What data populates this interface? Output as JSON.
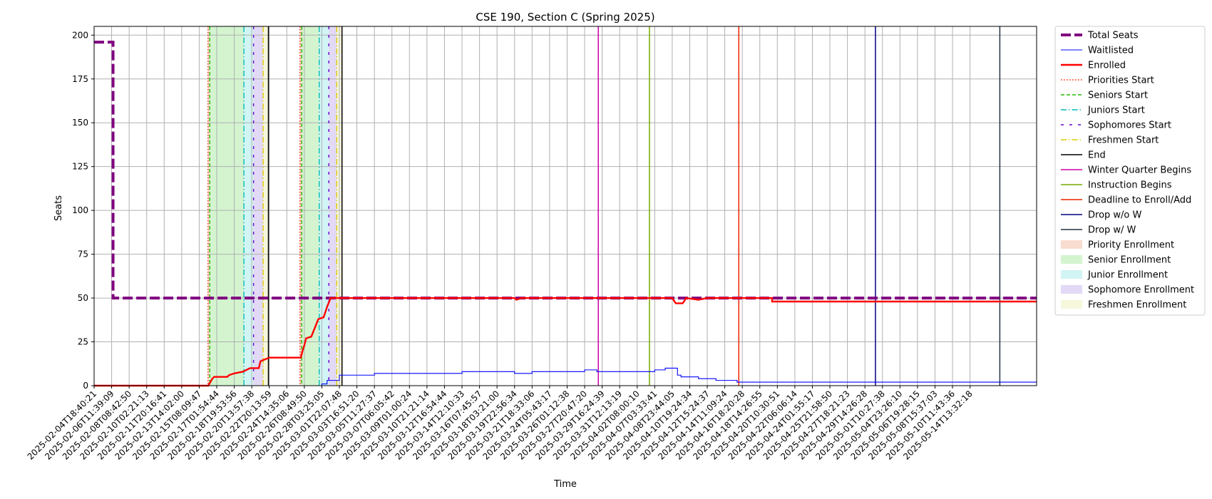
{
  "chart_data": {
    "type": "line",
    "title": "CSE 190, Section C (Spring 2025)",
    "xlabel": "Time",
    "ylabel": "Seats",
    "ylim": [
      0,
      205
    ],
    "yticks": [
      0,
      25,
      50,
      75,
      100,
      125,
      150,
      175,
      200
    ],
    "grid": true,
    "legend_position": "outside-right",
    "x_tick_labels": [
      "2025-02-04T18:40:21",
      "2025-02-06T11:39:09",
      "2025-02-08T08:42:50",
      "2025-02-10T02:21:13",
      "2025-02-11T20:16:41",
      "2025-02-13T14:02:00",
      "2025-02-15T08:09:47",
      "2025-02-17T01:54:44",
      "2025-02-18T19:53:56",
      "2025-02-20T13:57:38",
      "2025-02-22T20:13:59",
      "2025-02-24T14:35:06",
      "2025-02-26T08:49:50",
      "2025-02-28T03:25:05",
      "2025-03-01T22:07:48",
      "2025-03-03T16:51:20",
      "2025-03-05T11:27:37",
      "2025-03-07T06:05:42",
      "2025-03-09T01:00:24",
      "2025-03-10T21:21:14",
      "2025-03-12T16:54:44",
      "2025-03-14T12:10:33",
      "2025-03-16T07:45:57",
      "2025-03-18T03:21:00",
      "2025-03-19T22:56:34",
      "2025-03-21T18:33:06",
      "2025-03-24T05:43:17",
      "2025-03-26T01:12:38",
      "2025-03-27T20:47:20",
      "2025-03-29T16:24:39",
      "2025-03-31T12:13:19",
      "2025-04-02T08:00:10",
      "2025-04-07T03:33:41",
      "2025-04-08T23:44:05",
      "2025-04-10T19:24:34",
      "2025-04-12T15:24:37",
      "2025-04-14T11:09:24",
      "2025-04-16T18:20:28",
      "2025-04-18T14:26:55",
      "2025-04-20T10:30:51",
      "2025-04-22T06:06:14",
      "2025-04-24T01:55:17",
      "2025-04-25T21:58:50",
      "2025-04-27T18:21:23",
      "2025-04-29T14:26:28",
      "2025-05-01T10:27:38",
      "2025-05-04T23:26:10",
      "2025-05-06T19:28:15",
      "2025-05-08T15:37:03",
      "2025-05-10T11:43:36",
      "2025-05-14T13:32:18"
    ],
    "x_range_tick_index": [
      0,
      53.8
    ],
    "series": [
      {
        "name": "Total Seats",
        "color": "#800080",
        "style": "dashed-thick",
        "points": [
          [
            0,
            196
          ],
          [
            1.08,
            196
          ],
          [
            1.08,
            50
          ],
          [
            53.8,
            50
          ]
        ]
      },
      {
        "name": "Waitlisted",
        "color": "#0000ff",
        "style": "solid-thin",
        "points": [
          [
            0,
            0
          ],
          [
            13.0,
            0
          ],
          [
            13.0,
            1
          ],
          [
            13.3,
            1
          ],
          [
            13.3,
            3
          ],
          [
            14.0,
            3
          ],
          [
            14.0,
            6
          ],
          [
            16.0,
            6
          ],
          [
            16.0,
            7
          ],
          [
            21.0,
            7
          ],
          [
            21.0,
            8
          ],
          [
            24.0,
            8
          ],
          [
            24.0,
            7
          ],
          [
            25.0,
            7
          ],
          [
            25.0,
            8
          ],
          [
            28.0,
            8
          ],
          [
            28.0,
            9
          ],
          [
            28.7,
            9
          ],
          [
            28.7,
            8
          ],
          [
            32.0,
            8
          ],
          [
            32.0,
            9
          ],
          [
            32.6,
            9
          ],
          [
            32.6,
            10
          ],
          [
            33.3,
            10
          ],
          [
            33.3,
            6
          ],
          [
            33.5,
            6
          ],
          [
            33.5,
            5
          ],
          [
            34.5,
            5
          ],
          [
            34.5,
            4
          ],
          [
            35.5,
            4
          ],
          [
            35.5,
            3
          ],
          [
            36.7,
            3
          ],
          [
            36.7,
            2
          ],
          [
            53.8,
            2
          ]
        ]
      },
      {
        "name": "Enrolled",
        "color": "#ff0000",
        "style": "solid-thick",
        "points": [
          [
            0,
            0
          ],
          [
            6.52,
            0
          ],
          [
            6.75,
            4
          ],
          [
            6.85,
            5
          ],
          [
            7.6,
            5
          ],
          [
            7.7,
            6
          ],
          [
            8.0,
            7
          ],
          [
            8.5,
            8
          ],
          [
            8.9,
            10
          ],
          [
            9.4,
            10
          ],
          [
            9.5,
            14
          ],
          [
            10.0,
            16
          ],
          [
            11.8,
            16
          ],
          [
            11.9,
            20
          ],
          [
            12.0,
            23
          ],
          [
            12.1,
            27
          ],
          [
            12.4,
            28
          ],
          [
            12.6,
            33
          ],
          [
            12.8,
            38
          ],
          [
            13.1,
            39
          ],
          [
            13.3,
            45
          ],
          [
            13.5,
            50
          ],
          [
            24.0,
            50
          ],
          [
            24.1,
            49
          ],
          [
            24.4,
            50
          ],
          [
            33.0,
            50
          ],
          [
            33.2,
            47
          ],
          [
            33.6,
            47
          ],
          [
            33.8,
            50
          ],
          [
            34.5,
            49
          ],
          [
            35.0,
            50
          ],
          [
            38.7,
            50
          ],
          [
            38.7,
            48
          ],
          [
            53.8,
            48
          ]
        ]
      }
    ],
    "vertical_lines": [
      {
        "name": "Priorities Start",
        "color": "#ff2200",
        "style": "dotted",
        "x": [
          6.5,
          11.75
        ]
      },
      {
        "name": "Seniors Start",
        "color": "#22bb00",
        "style": "dashed",
        "x": [
          6.6,
          11.85
        ]
      },
      {
        "name": "Juniors Start",
        "color": "#00bbbb",
        "style": "dashdot",
        "x": [
          8.55,
          12.85
        ]
      },
      {
        "name": "Sophomores Start",
        "color": "#6600cc",
        "style": "loosedash",
        "x": [
          9.1,
          13.4
        ]
      },
      {
        "name": "Freshmen Start",
        "color": "#ddcc00",
        "style": "dashdot",
        "x": [
          9.65,
          13.85
        ]
      },
      {
        "name": "End",
        "color": "#000000",
        "style": "solid",
        "x": [
          9.95,
          14.15
        ]
      },
      {
        "name": "Winter Quarter Begins",
        "color": "#cc00aa",
        "style": "solid",
        "x": [
          28.78
        ]
      },
      {
        "name": "Instruction Begins",
        "color": "#77aa00",
        "style": "solid",
        "x": [
          31.7
        ]
      },
      {
        "name": "Deadline to Enroll/Add",
        "color": "#ee2200",
        "style": "solid",
        "x": [
          36.8
        ]
      },
      {
        "name": "Drop w/o W",
        "color": "#000080",
        "style": "solid",
        "x": [
          44.6
        ]
      },
      {
        "name": "Drop w/ W",
        "color": "#223344",
        "style": "solid",
        "x": [
          51.7
        ]
      }
    ],
    "shaded_regions": [
      {
        "name": "Priority Enrollment",
        "color": "#f4c4b0",
        "spans": [
          [
            6.5,
            6.6
          ],
          [
            11.75,
            11.85
          ]
        ]
      },
      {
        "name": "Senior Enrollment",
        "color": "#b8ecb0",
        "spans": [
          [
            6.6,
            8.55
          ],
          [
            11.85,
            12.85
          ]
        ]
      },
      {
        "name": "Junior Enrollment",
        "color": "#b3ecec",
        "spans": [
          [
            8.55,
            9.1
          ],
          [
            12.85,
            13.4
          ]
        ]
      },
      {
        "name": "Sophomore Enrollment",
        "color": "#cfc0f0",
        "spans": [
          [
            9.1,
            9.65
          ],
          [
            13.4,
            13.85
          ]
        ]
      },
      {
        "name": "Freshmen Enrollment",
        "color": "#f2f2c6",
        "spans": [
          [
            9.65,
            9.95
          ],
          [
            13.85,
            14.15
          ]
        ]
      }
    ],
    "legend": [
      {
        "label": "Total Seats",
        "kind": "line",
        "color": "#800080",
        "style": "dashed-thick"
      },
      {
        "label": "Waitlisted",
        "kind": "line",
        "color": "#0000ff",
        "style": "solid-thin"
      },
      {
        "label": "Enrolled",
        "kind": "line",
        "color": "#ff0000",
        "style": "solid-thick"
      },
      {
        "label": "Priorities Start",
        "kind": "line",
        "color": "#ff2200",
        "style": "dotted"
      },
      {
        "label": "Seniors Start",
        "kind": "line",
        "color": "#22bb00",
        "style": "dashed"
      },
      {
        "label": "Juniors Start",
        "kind": "line",
        "color": "#00bbbb",
        "style": "dashdot"
      },
      {
        "label": "Sophomores Start",
        "kind": "line",
        "color": "#6600cc",
        "style": "loosedash"
      },
      {
        "label": "Freshmen Start",
        "kind": "line",
        "color": "#ddcc00",
        "style": "dashdot"
      },
      {
        "label": "End",
        "kind": "line",
        "color": "#000000",
        "style": "solid"
      },
      {
        "label": "Winter Quarter Begins",
        "kind": "line",
        "color": "#cc00aa",
        "style": "solid"
      },
      {
        "label": "Instruction Begins",
        "kind": "line",
        "color": "#77aa00",
        "style": "solid"
      },
      {
        "label": "Deadline to Enroll/Add",
        "kind": "line",
        "color": "#ee2200",
        "style": "solid"
      },
      {
        "label": "Drop w/o W",
        "kind": "line",
        "color": "#000080",
        "style": "solid"
      },
      {
        "label": "Drop w/ W",
        "kind": "line",
        "color": "#223344",
        "style": "solid"
      },
      {
        "label": "Priority Enrollment",
        "kind": "patch",
        "color": "#f4c4b0"
      },
      {
        "label": "Senior Enrollment",
        "kind": "patch",
        "color": "#b8ecb0"
      },
      {
        "label": "Junior Enrollment",
        "kind": "patch",
        "color": "#b3ecec"
      },
      {
        "label": "Sophomore Enrollment",
        "kind": "patch",
        "color": "#cfc0f0"
      },
      {
        "label": "Freshmen Enrollment",
        "kind": "patch",
        "color": "#f2f2c6"
      }
    ]
  }
}
